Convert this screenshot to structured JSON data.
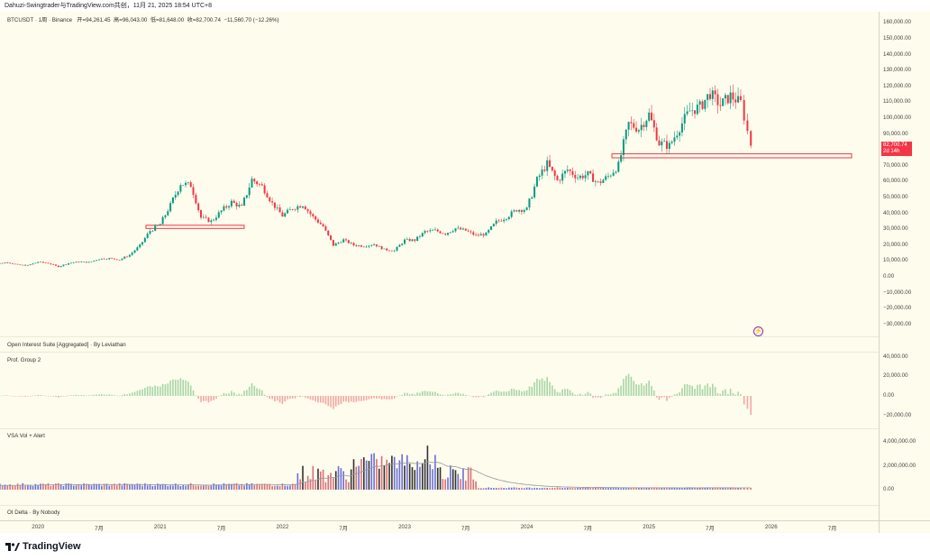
{
  "header": {
    "title": "Dahuzi-Swingtrader与TradingView.com共创，11月 21, 2025 18:54 UTC+8"
  },
  "legend": {
    "symbol": "BTCUSDT · 1周 · Binance",
    "open": "开=94,261.45",
    "high": "高=96,043.00",
    "low": "低=81,648.00",
    "close": "收=82,700.74",
    "change": "−11,560.70 (−12.26%)"
  },
  "price_tag": {
    "price": "82,700.74",
    "countdown": "2d 14h"
  },
  "panes": {
    "oi": "Open Interest Suite [Aggregated] · By Leviathan",
    "prof": "Prof. Group 2",
    "vsa": "VSA Vol + Alert",
    "delta": "OI Delta · By Nobody"
  },
  "branding": {
    "logo_text": "TradingView"
  },
  "colors": {
    "up": "#089981",
    "down": "#f23645",
    "box": "#f23645",
    "hist_up": "#a8d5a8",
    "hist_down": "#f1a8a6",
    "vol_blue": "#6a6fd8",
    "vol_red": "#d9707a",
    "ma": "#9598a1"
  },
  "chart_data": {
    "type": "candlestick",
    "interval": "1W",
    "price_axis": {
      "ticks": [
        "160,000.00",
        "150,000.00",
        "140,000.00",
        "130,000.00",
        "120,000.00",
        "110,000.00",
        "100,000.00",
        "90,000.00",
        "70,000.00",
        "60,000.00",
        "50,000.00",
        "40,000.00",
        "30,000.00",
        "20,000.00",
        "10,000.00",
        "0.00",
        "−10,000.00",
        "−20,000.00",
        "−30,000.00"
      ],
      "range": [
        -30000,
        160000
      ]
    },
    "prof_axis": {
      "ticks": [
        "40,000.00",
        "20,000.00",
        "0.00",
        "−20,000.00"
      ],
      "range": [
        -30000,
        45000
      ]
    },
    "vol_axis": {
      "ticks": [
        "4,000,000.00",
        "2,000,000.00",
        "0.00"
      ],
      "range": [
        0,
        4600000
      ]
    },
    "time_axis": [
      "2020",
      "7月",
      "2021",
      "7月",
      "2022",
      "7月",
      "2023",
      "7月",
      "2024",
      "7月",
      "2025",
      "7月",
      "2026",
      "7月"
    ],
    "start_month": "2019-09",
    "monthly_closes": [
      8300,
      9150,
      7550,
      7200,
      9350,
      8550,
      6400,
      8600,
      9450,
      9150,
      11300,
      11650,
      10780,
      13800,
      19700,
      29000,
      33100,
      45200,
      58800,
      57700,
      37300,
      35000,
      41500,
      47100,
      43800,
      61300,
      57000,
      46300,
      38500,
      43200,
      45500,
      37700,
      31800,
      19900,
      23300,
      20000,
      19400,
      20500,
      17200,
      16500,
      23100,
      23100,
      28500,
      29200,
      27200,
      30500,
      29200,
      26000,
      27000,
      34600,
      37700,
      42300,
      42600,
      61200,
      71300,
      60600,
      67500,
      62700,
      64600,
      59000,
      63300,
      70300,
      96400,
      93400,
      102400,
      84300,
      82500,
      94200,
      104600,
      107100,
      115700,
      108200,
      114000,
      109500,
      82700
    ],
    "support_boxes": [
      {
        "from": "2020-12",
        "to": "2021-09",
        "low": 30500,
        "high": 32500
      },
      {
        "from": "2024-10",
        "to": "2026-09",
        "low": 75000,
        "high": 77500
      }
    ]
  }
}
